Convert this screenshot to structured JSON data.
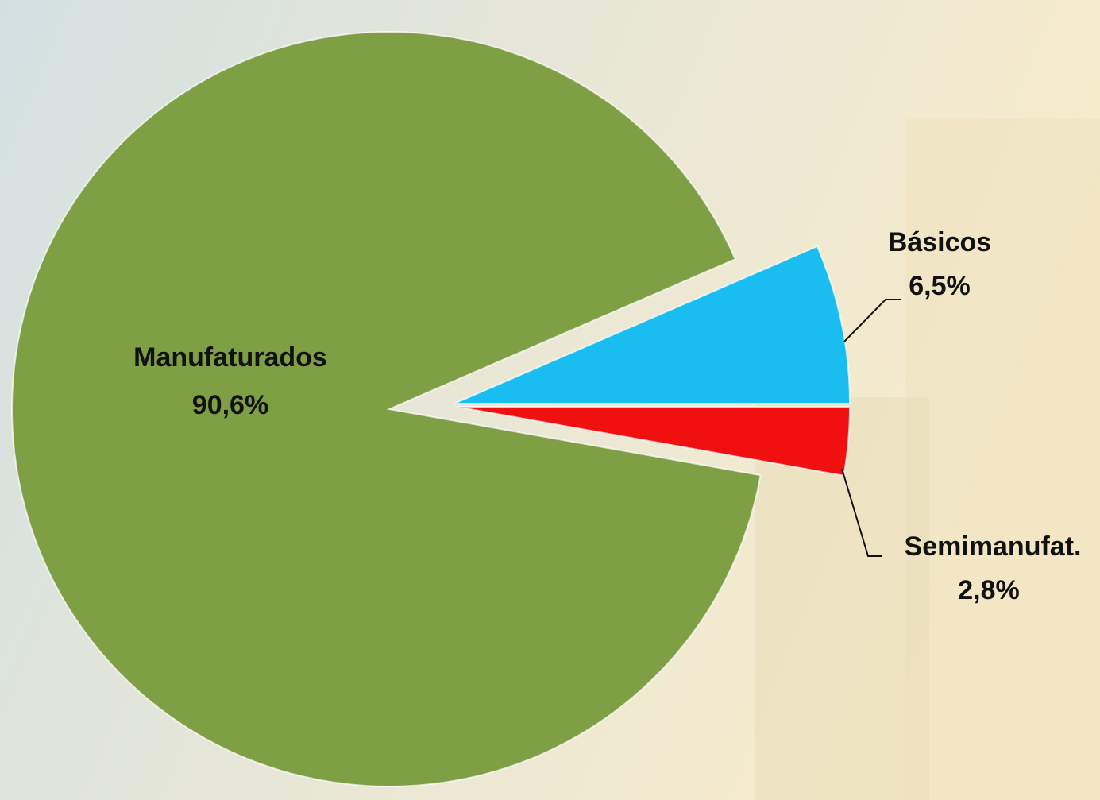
{
  "chart_data": {
    "type": "pie",
    "categories": [
      "Manufaturados",
      "Básicos",
      "Semimanufat."
    ],
    "values": [
      90.6,
      6.5,
      2.8
    ],
    "value_labels": [
      "90,6%",
      "6,5%",
      "2,8%"
    ],
    "colors": [
      "#7f9f45",
      "#19bdf0",
      "#f01010"
    ]
  }
}
